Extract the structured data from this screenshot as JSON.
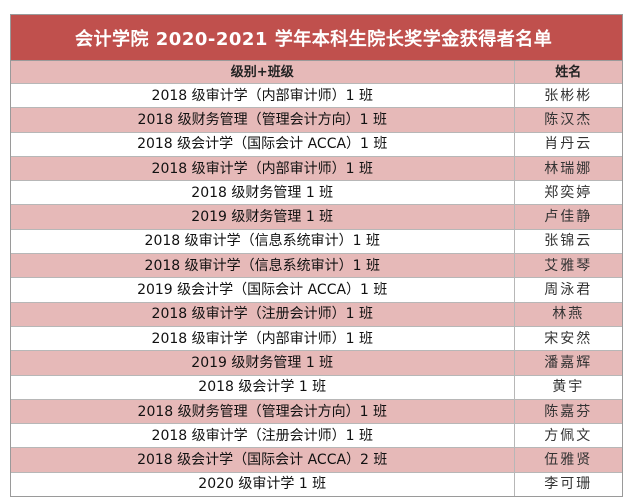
{
  "colors": {
    "title_background": "#c0504d",
    "row_highlight": "#e6b9b8",
    "row_plain": "#ffffff"
  },
  "document": {
    "title": "会计学院 2020-2021 学年本科生院长奖学金获得者名单",
    "columns": {
      "class": "级别+班级",
      "name": "姓名"
    },
    "rows": [
      {
        "class": "2018 级审计学（内部审计师）1 班",
        "name": "张彬彬"
      },
      {
        "class": "2018 级财务管理（管理会计方向）1 班",
        "name": "陈汉杰"
      },
      {
        "class": "2018 级会计学（国际会计 ACCA）1 班",
        "name": "肖丹云"
      },
      {
        "class": "2018 级审计学（内部审计师）1 班",
        "name": "林瑞娜"
      },
      {
        "class": "2018 级财务管理 1 班",
        "name": "郑奕婷"
      },
      {
        "class": "2019 级财务管理 1 班",
        "name": "卢佳静"
      },
      {
        "class": "2018 级审计学（信息系统审计）1 班",
        "name": "张锦云"
      },
      {
        "class": "2018 级审计学（信息系统审计）1 班",
        "name": "艾雅琴"
      },
      {
        "class": "2019 级会计学（国际会计 ACCA）1 班",
        "name": "周泳君"
      },
      {
        "class": "2018 级审计学（注册会计师）1 班",
        "name": "林燕"
      },
      {
        "class": "2018 级审计学（内部审计师）1 班",
        "name": "宋安然"
      },
      {
        "class": "2019 级财务管理 1 班",
        "name": "潘嘉辉"
      },
      {
        "class": "2018 级会计学 1 班",
        "name": "黄宇"
      },
      {
        "class": "2018 级财务管理（管理会计方向）1 班",
        "name": "陈嘉芬"
      },
      {
        "class": "2018 级审计学（注册会计师）1 班",
        "name": "方佩文"
      },
      {
        "class": "2018 级会计学（国际会计 ACCA）2 班",
        "name": "伍雅贤"
      },
      {
        "class": "2020 级审计学 1 班",
        "name": "李可珊"
      }
    ]
  }
}
